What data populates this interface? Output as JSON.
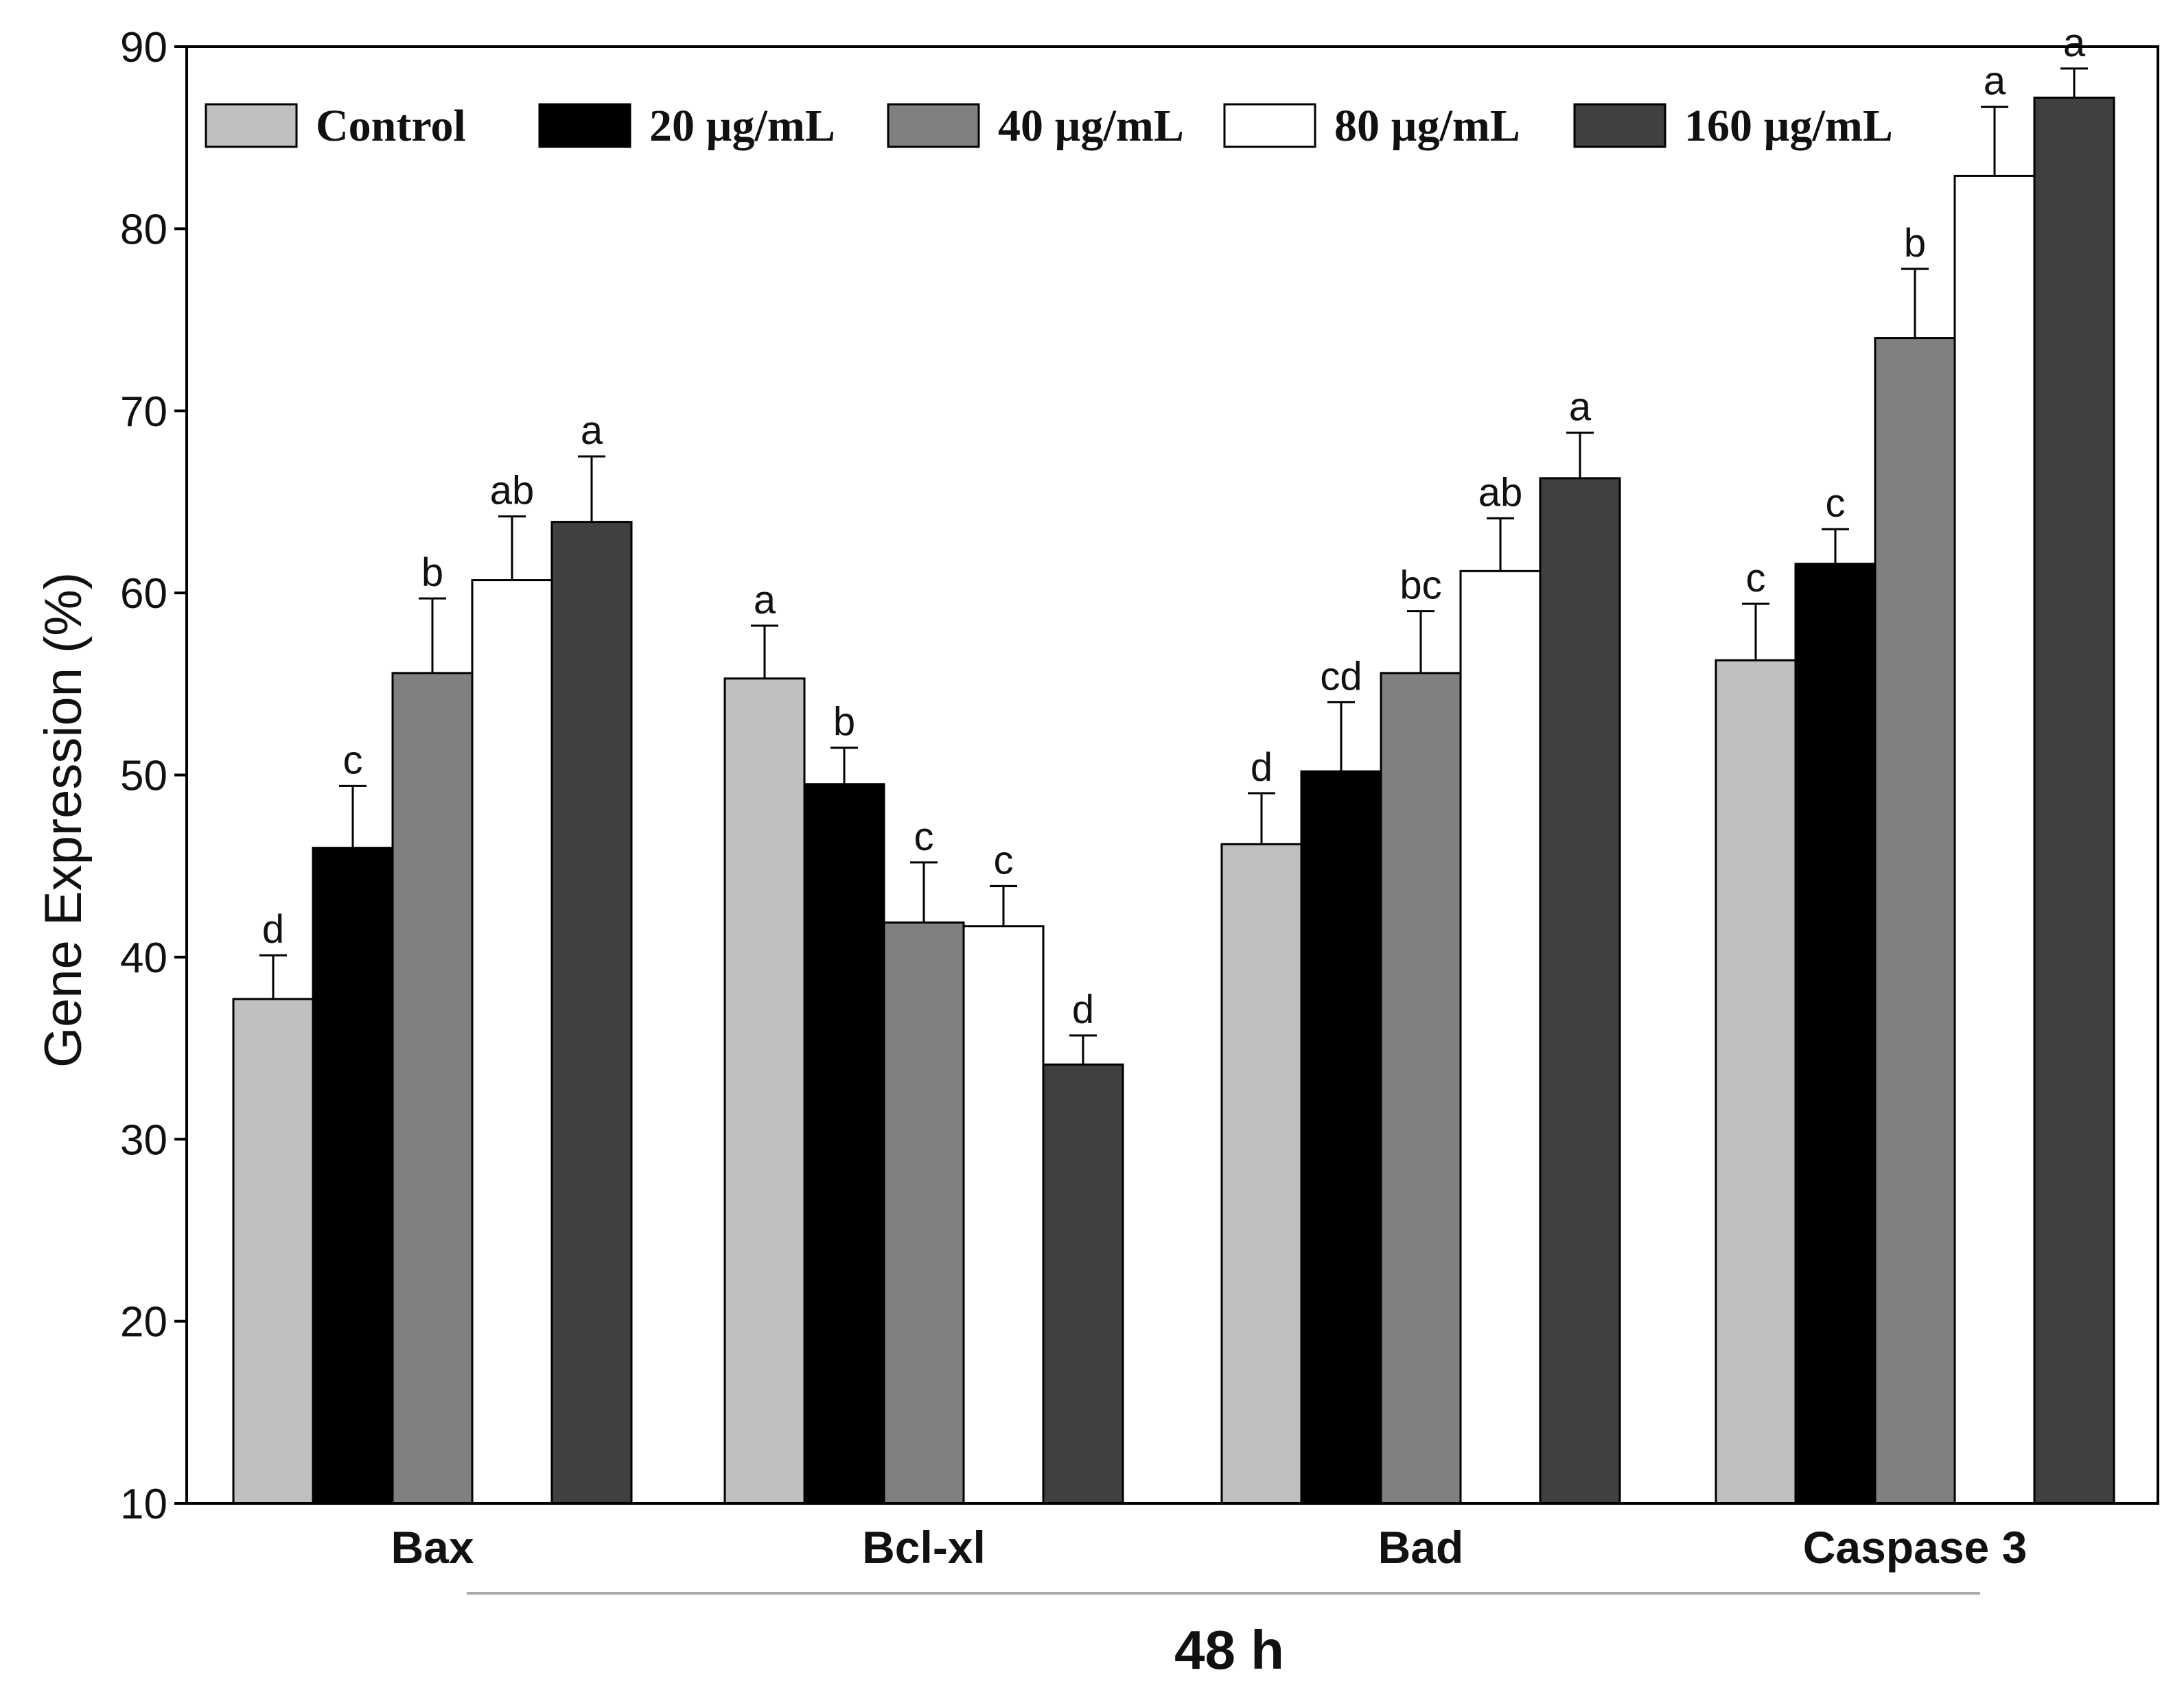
{
  "chart_data": {
    "type": "bar",
    "title": "",
    "ylabel": "Gene Expression (%)",
    "xlabel": "48 h",
    "ylim": [
      10,
      90
    ],
    "yticks": [
      10,
      20,
      30,
      40,
      50,
      60,
      70,
      80,
      90
    ],
    "grid": false,
    "legend_position": "top",
    "categories": [
      "Bax",
      "Bcl-xl",
      "Bad",
      "Caspase 3"
    ],
    "series": [
      {
        "name": "Control",
        "color": "#c0c0c0",
        "values": [
          37.7,
          55.3,
          46.2,
          56.3
        ],
        "errors": [
          2.4,
          2.9,
          2.8,
          3.1
        ],
        "labels": [
          "d",
          "a",
          "d",
          "c"
        ]
      },
      {
        "name": "20 µg/mL",
        "color": "#000000",
        "values": [
          46.0,
          49.5,
          50.2,
          61.6
        ],
        "errors": [
          3.4,
          2.0,
          3.8,
          1.9
        ],
        "labels": [
          "c",
          "b",
          "cd",
          "c"
        ]
      },
      {
        "name": "40 µg/mL",
        "color": "#808080",
        "values": [
          55.6,
          41.9,
          55.6,
          74.0
        ],
        "errors": [
          4.1,
          3.3,
          3.4,
          3.8
        ],
        "labels": [
          "b",
          "c",
          "bc",
          "b"
        ]
      },
      {
        "name": "80 µg/mL",
        "color": "#ffffff",
        "values": [
          60.7,
          41.7,
          61.2,
          82.9
        ],
        "errors": [
          3.5,
          2.2,
          2.9,
          3.8
        ],
        "labels": [
          "ab",
          "c",
          "ab",
          "a"
        ]
      },
      {
        "name": "160 µg/mL",
        "color": "#404040",
        "values": [
          63.9,
          34.1,
          66.3,
          87.2
        ],
        "errors": [
          3.6,
          1.6,
          2.5,
          1.6
        ],
        "labels": [
          "a",
          "d",
          "a",
          "a"
        ]
      }
    ]
  }
}
